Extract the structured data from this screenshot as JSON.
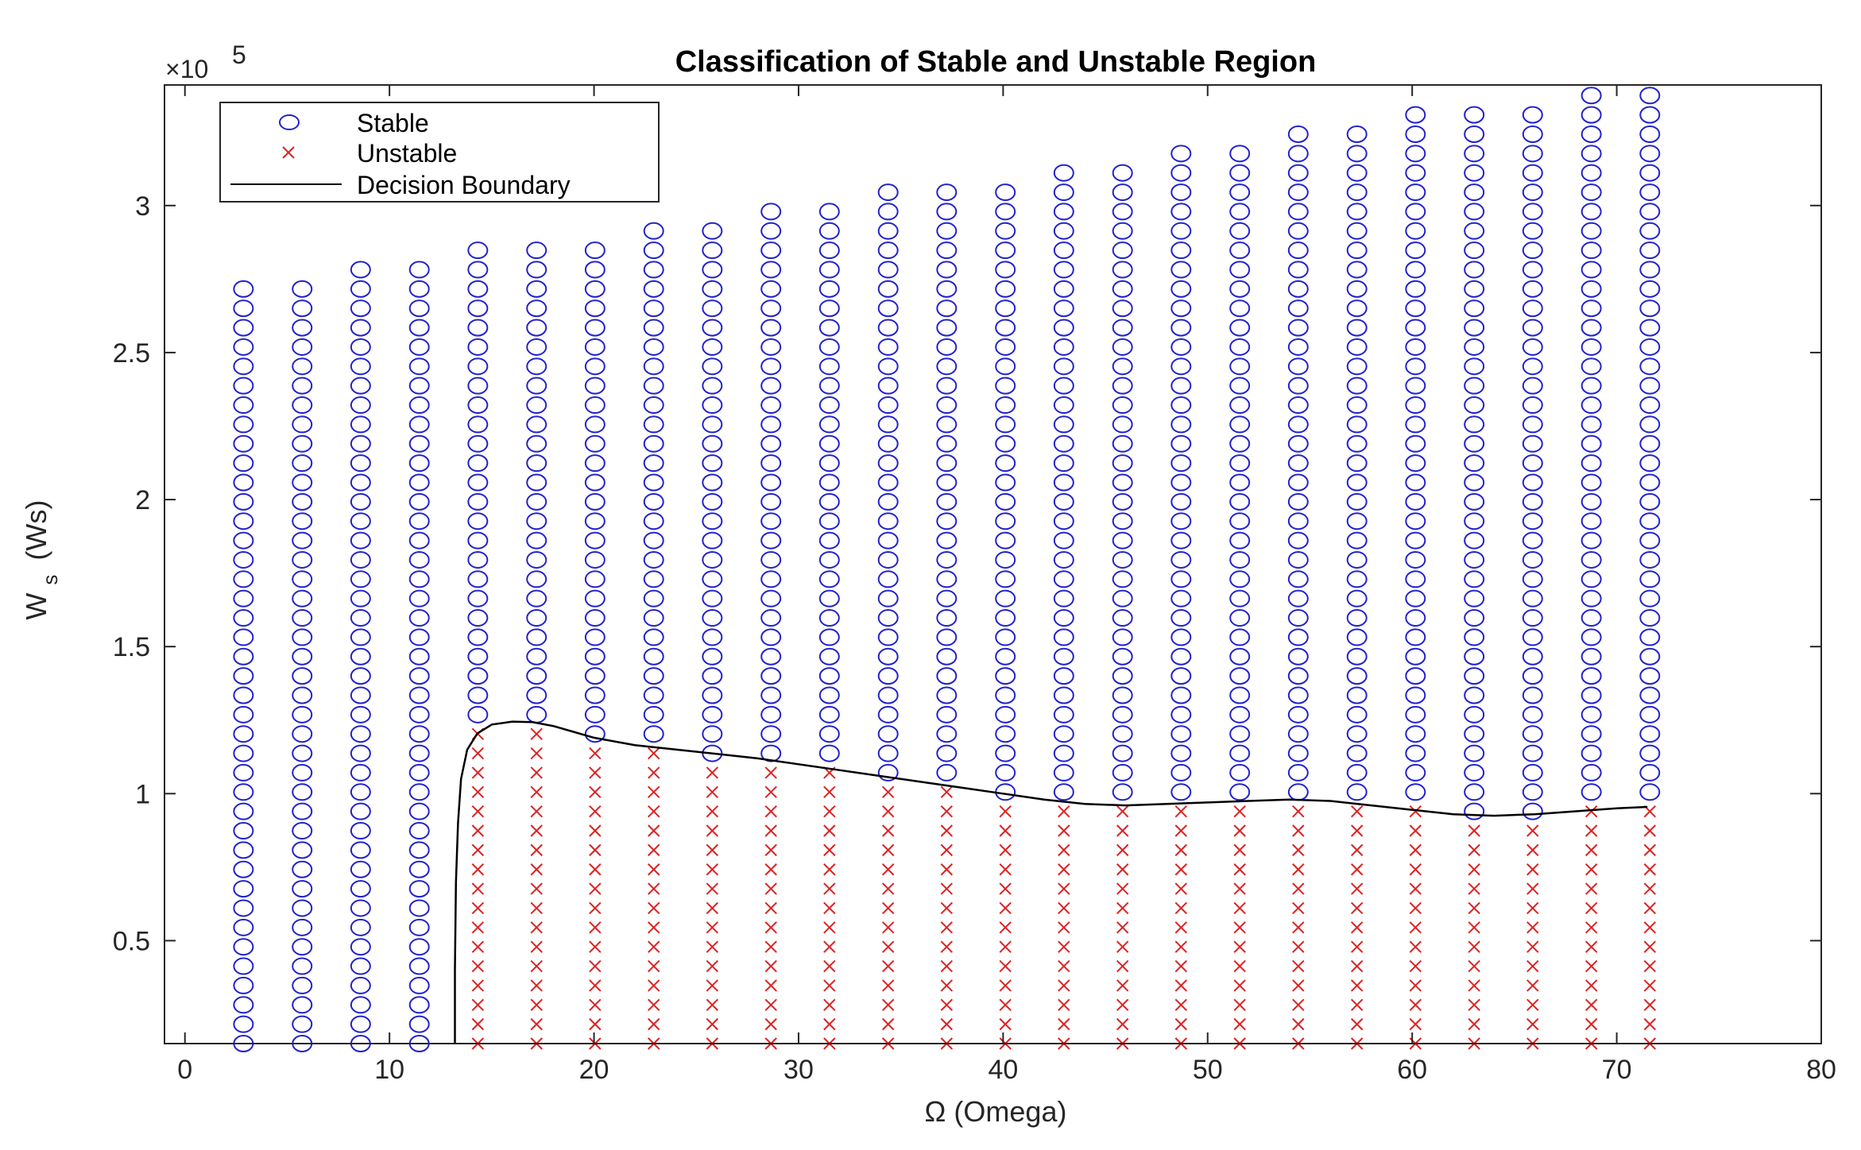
{
  "chart_data": {
    "type": "scatter",
    "title": "Classification of Stable and Unstable Region",
    "xlabel": "Ω (Omega)",
    "ylabel_main": "W",
    "ylabel_sub": "s",
    "ylabel_units": "(Ws)",
    "y_exponent_prefix": "×10",
    "y_exponent_power": "5",
    "y_scale": 100000,
    "xlim": [
      -1,
      80
    ],
    "ylim": [
      15000,
      341000
    ],
    "xticks": [
      0,
      10,
      20,
      30,
      40,
      50,
      60,
      70,
      80
    ],
    "xtick_labels": [
      "0",
      "10",
      "20",
      "30",
      "40",
      "50",
      "60",
      "70",
      "80"
    ],
    "yticks": [
      50000,
      100000,
      150000,
      200000,
      250000,
      300000
    ],
    "ytick_labels": [
      "0.5",
      "1",
      "1.5",
      "2",
      "2.5",
      "3"
    ],
    "grid": false,
    "legend_position": "top-left",
    "legend": [
      {
        "label": "Stable",
        "marker": "circle",
        "color": "#2222cc"
      },
      {
        "label": "Unstable",
        "marker": "x",
        "color": "#dd2222"
      },
      {
        "label": "Decision Boundary",
        "marker": "line",
        "color": "#000000"
      }
    ],
    "grid_columns": {
      "omega": [
        2.86,
        5.73,
        8.59,
        11.46,
        14.32,
        17.19,
        20.05,
        22.92,
        25.78,
        28.65,
        31.51,
        34.38,
        37.24,
        40.11,
        42.97,
        45.84,
        48.7,
        51.57,
        54.43,
        57.3,
        60.16,
        63.03,
        65.89,
        68.76,
        71.62
      ],
      "ws_max": [
        273000,
        276000,
        279000,
        282000,
        285000,
        288000,
        290000,
        293000,
        296000,
        299000,
        302000,
        305000,
        308000,
        311000,
        313000,
        316000,
        319000,
        322000,
        325000,
        328000,
        331000,
        334000,
        336000,
        339000,
        342000
      ],
      "ws_min": 15000,
      "ws_step": 6580
    },
    "series": [
      {
        "name": "Stable",
        "marker": "o",
        "color": "#2222cc",
        "rule": "points above the decision boundary"
      },
      {
        "name": "Unstable",
        "marker": "x",
        "color": "#dd2222",
        "rule": "points below the decision boundary"
      }
    ],
    "decision_boundary": {
      "x": [
        13.2,
        13.2,
        13.25,
        13.35,
        13.5,
        13.8,
        14.3,
        15.0,
        16.0,
        17.0,
        18.0,
        19.0,
        20.0,
        22.0,
        24.0,
        26.0,
        28.0,
        30.0,
        32.0,
        34.0,
        36.0,
        38.0,
        40.0,
        42.0,
        44.0,
        46.0,
        48.0,
        50.0,
        52.0,
        54.0,
        56.0,
        58.0,
        60.0,
        62.0,
        64.0,
        66.0,
        68.0,
        70.0,
        71.5
      ],
      "y": [
        15000,
        40000,
        70000,
        90000,
        105000,
        115000,
        120500,
        123500,
        124500,
        124300,
        123000,
        121000,
        119000,
        116500,
        115000,
        113500,
        112000,
        110000,
        108000,
        106000,
        104000,
        102000,
        100000,
        98000,
        96500,
        96000,
        96500,
        97000,
        97500,
        98000,
        97500,
        96000,
        94500,
        93000,
        92500,
        93000,
        94000,
        95000,
        95500
      ]
    }
  }
}
